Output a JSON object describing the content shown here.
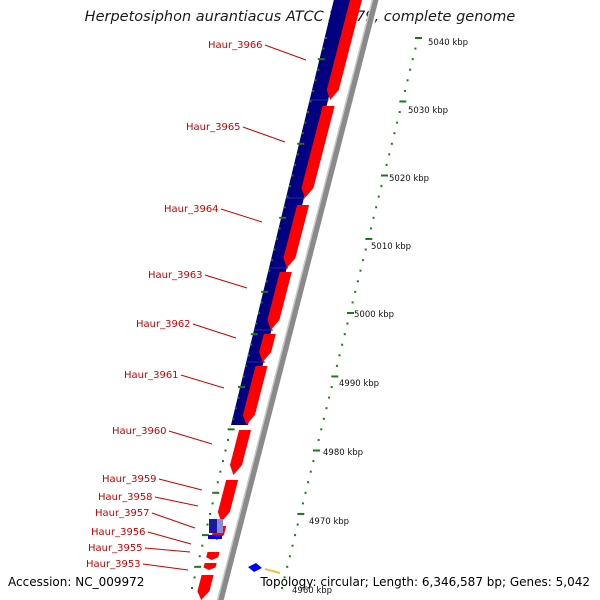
{
  "title": "Herpetosiphon aurantiacus ATCC 23779, complete genome",
  "accession": "Accession: NC_009972",
  "summary": "Topology: circular; Length: 6,346,587 bp; Genes: 5,042",
  "colors": {
    "forward_gene": "#ff0000",
    "reverse_gene": "#000080",
    "label": "#cc0000",
    "tick": "#1a7a1a",
    "backbone": "#8a8a8a"
  },
  "scale": {
    "tick_labels": [
      "5040 kbp",
      "5030 kbp",
      "5020 kbp",
      "5010 kbp",
      "5000 kbp",
      "4990 kbp",
      "4980 kbp",
      "4970 kbp",
      "4960 kbp"
    ]
  },
  "genes": [
    {
      "name": "Haur_3966"
    },
    {
      "name": "Haur_3965"
    },
    {
      "name": "Haur_3964"
    },
    {
      "name": "Haur_3963"
    },
    {
      "name": "Haur_3962"
    },
    {
      "name": "Haur_3961"
    },
    {
      "name": "Haur_3960"
    },
    {
      "name": "Haur_3959"
    },
    {
      "name": "Haur_3958"
    },
    {
      "name": "Haur_3957"
    },
    {
      "name": "Haur_3956"
    },
    {
      "name": "Haur_3955"
    },
    {
      "name": "Haur_3953"
    }
  ]
}
